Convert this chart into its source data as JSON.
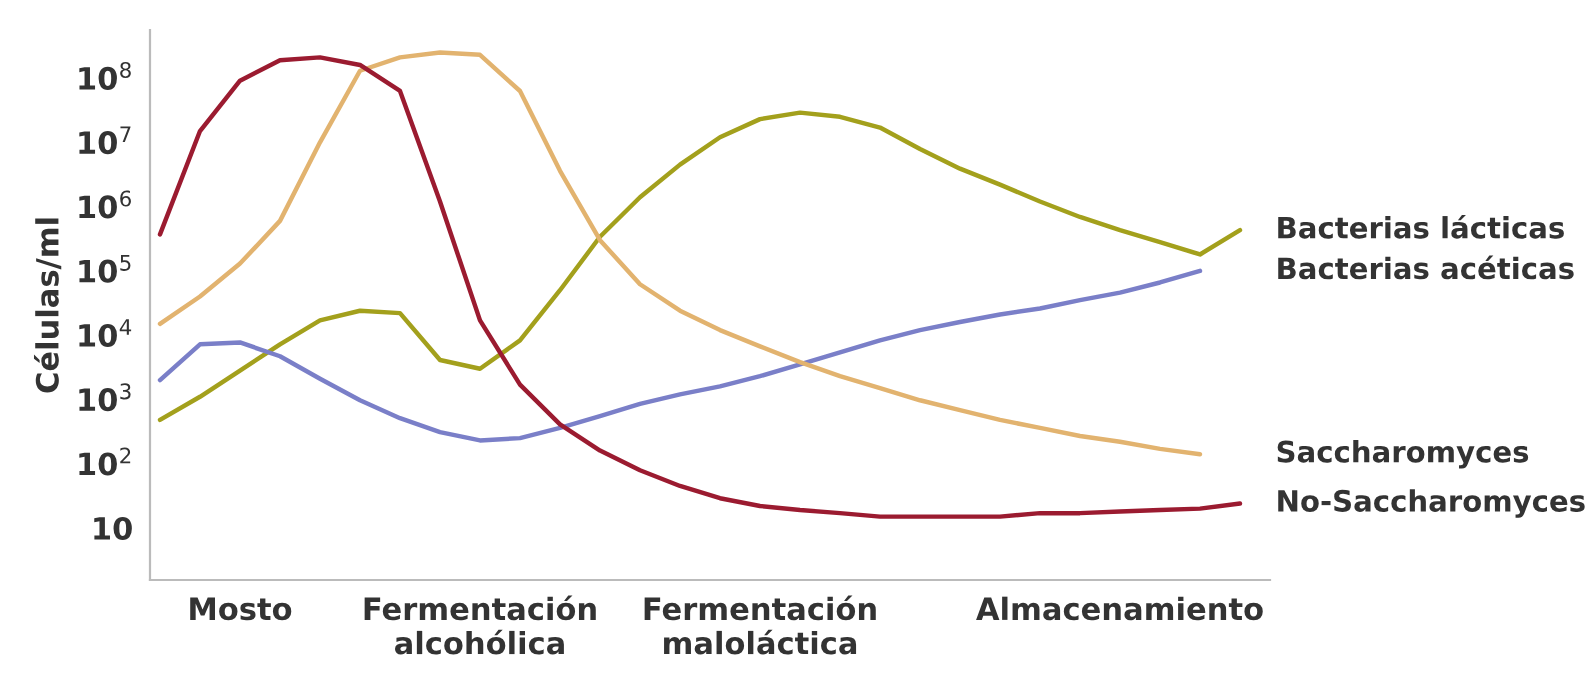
{
  "chart_data": {
    "type": "line",
    "ylabel": "Células/ml",
    "log": "y",
    "grid": false,
    "legend": false,
    "marker": "none",
    "line_style": "solid",
    "categories": [
      null,
      null,
      "Mosto",
      null,
      null,
      null,
      null,
      null,
      "Fermentación\nalcohólica",
      null,
      null,
      null,
      null,
      null,
      null,
      "Fermentación\nmaloláctica",
      null,
      null,
      null,
      null,
      null,
      null,
      null,
      null,
      "Almacenamiento",
      null,
      null,
      null
    ],
    "ylim": [
      1.55,
      560000000.0
    ],
    "yticks": [
      {
        "value": 10,
        "label": "10"
      },
      {
        "value": 100,
        "label": "10$^{2}$"
      },
      {
        "value": 1000,
        "label": "10$^{3}$"
      },
      {
        "value": 10000,
        "label": "10$^{4}$"
      },
      {
        "value": 100000,
        "label": "10$^{5}$"
      },
      {
        "value": 1000000,
        "label": "10$^{6}$"
      },
      {
        "value": 10000000,
        "label": "10$^{7}$"
      },
      {
        "value": 100000000,
        "label": "10$^{8}$"
      }
    ],
    "series": [
      {
        "name": "Bacterias lácticas",
        "color": "#a3a01c",
        "values": [
          480,
          1100,
          2800,
          7200,
          17000,
          24000,
          22000,
          4100,
          3000,
          8300,
          50000,
          340000,
          1400000,
          4500000,
          12000000,
          23000000,
          29000000,
          25000000,
          17000000,
          7900000,
          3900000,
          2200000,
          1200000,
          690000,
          430000,
          280000,
          180000,
          430000
        ]
      },
      {
        "name": "Bacterias acéticas",
        "color": "#7a7fc8",
        "values": [
          2000,
          7200,
          7700,
          4700,
          2100,
          970,
          510,
          310,
          230,
          250,
          360,
          550,
          850,
          1200,
          1600,
          2300,
          3500,
          5400,
          8300,
          12000,
          16000,
          21000,
          26000,
          35000,
          46000,
          66000,
          100000,
          null
        ]
      },
      {
        "name": "Saccharomyces",
        "color": "#e2b36f",
        "values": [
          15000,
          40000,
          130000,
          600000,
          10000000,
          130000000,
          210000000,
          250000000,
          230000000,
          63000000,
          3600000,
          300000,
          62000,
          24000,
          12000,
          6700,
          3800,
          2300,
          1500,
          970,
          680,
          480,
          360,
          270,
          220,
          170,
          140,
          null
        ]
      },
      {
        "name": "No-Saccharomyces",
        "color": "#9b1b30",
        "values": [
          370000,
          15000000,
          91000000,
          190000000,
          210000000,
          160000000,
          63000000,
          1200000,
          17000,
          1700,
          410,
          160,
          79,
          45,
          29,
          22,
          19,
          17,
          15,
          15,
          15,
          15,
          17,
          17,
          18,
          19,
          20,
          24
        ]
      }
    ]
  }
}
